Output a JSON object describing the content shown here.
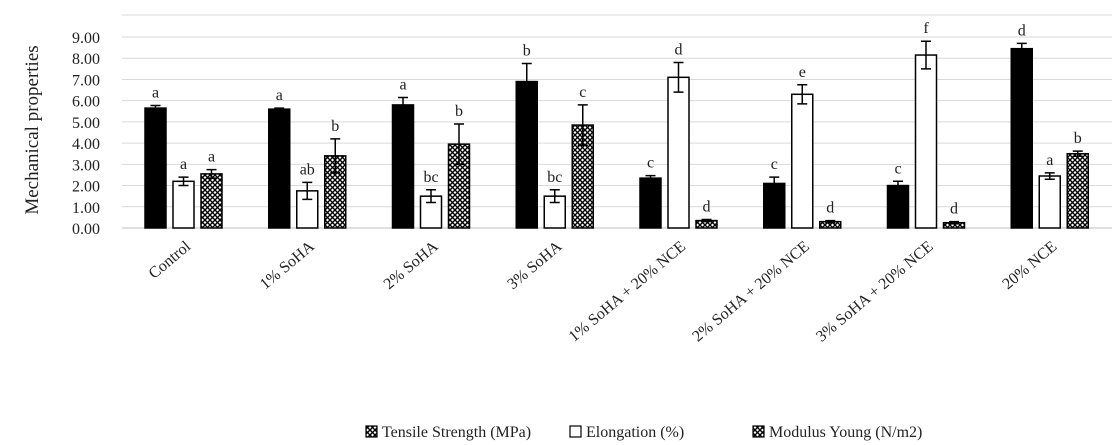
{
  "chart_data": {
    "type": "bar",
    "title": "",
    "xlabel": "",
    "ylabel": "Mechanical properties",
    "ylim": [
      0,
      9
    ],
    "yticks": [
      "0.00",
      "1.00",
      "2.00",
      "3.00",
      "4.00",
      "5.00",
      "6.00",
      "7.00",
      "8.00",
      "9.00"
    ],
    "grid": true,
    "legend_position": "bottom",
    "categories": [
      "Control",
      "1% SoHA",
      "2% SoHA",
      "3% SoHA",
      "1% SoHA + 20% NCE",
      "2% SoHA + 20% NCE",
      "3% SoHA + 20% NCE",
      "20% NCE"
    ],
    "series": [
      {
        "name": "Tensile Strength (MPa)",
        "pattern": "solid-black",
        "values": [
          5.65,
          5.6,
          5.8,
          6.9,
          2.35,
          2.1,
          2.0,
          8.45
        ],
        "errors": [
          0.12,
          0.05,
          0.35,
          0.85,
          0.12,
          0.3,
          0.2,
          0.25
        ],
        "letters": [
          "a",
          "a",
          "a",
          "b",
          "c",
          "c",
          "c",
          "d"
        ]
      },
      {
        "name": "Elongation (%)",
        "pattern": "white",
        "values": [
          2.2,
          1.75,
          1.5,
          1.5,
          7.1,
          6.3,
          8.15,
          2.45
        ],
        "errors": [
          0.2,
          0.4,
          0.3,
          0.3,
          0.7,
          0.45,
          0.65,
          0.15
        ],
        "letters": [
          "a",
          "ab",
          "bc",
          "bc",
          "d",
          "e",
          "f",
          "a"
        ]
      },
      {
        "name": "Modulus Young (N/m2)",
        "pattern": "crosshatch",
        "values": [
          2.55,
          3.4,
          3.95,
          4.85,
          0.35,
          0.3,
          0.25,
          3.5
        ],
        "errors": [
          0.2,
          0.8,
          0.95,
          0.95,
          0.05,
          0.05,
          0.05,
          0.12
        ],
        "letters": [
          "a",
          "b",
          "b",
          "c",
          "d",
          "d",
          "d",
          "b"
        ]
      }
    ]
  }
}
